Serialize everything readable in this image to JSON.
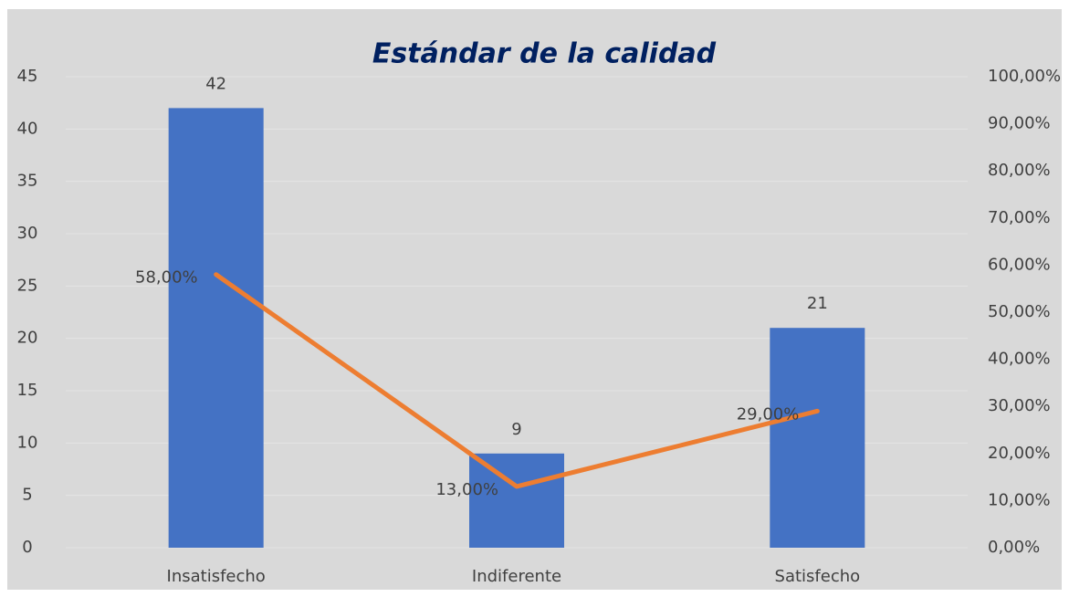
{
  "chart_data": {
    "type": "bar",
    "title": "Estándar de la calidad",
    "categories": [
      "Insatisfecho",
      "Indiferente",
      "Satisfecho"
    ],
    "series": [
      {
        "type": "bar",
        "color": "#4472c4",
        "values": [
          42,
          9,
          21
        ]
      },
      {
        "type": "line",
        "color": "#ed7d31",
        "axis": "y2",
        "values": [
          58,
          13,
          29
        ],
        "value_labels": [
          "58,00%",
          "13,00%",
          "29,00%"
        ]
      }
    ],
    "ylim": [
      0,
      45
    ],
    "yticks": [
      0,
      5,
      10,
      15,
      20,
      25,
      30,
      35,
      40,
      45
    ],
    "y2lim": [
      0,
      100
    ],
    "y2ticks": [
      {
        "value": 0,
        "label": "0,00%"
      },
      {
        "value": 10,
        "label": "10,00%"
      },
      {
        "value": 20,
        "label": "20,00%"
      },
      {
        "value": 30,
        "label": "30,00%"
      },
      {
        "value": 40,
        "label": "40,00%"
      },
      {
        "value": 50,
        "label": "50,00%"
      },
      {
        "value": 60,
        "label": "60,00%"
      },
      {
        "value": 70,
        "label": "70,00%"
      },
      {
        "value": 80,
        "label": "80,00%"
      },
      {
        "value": 90,
        "label": "90,00%"
      },
      {
        "value": 100,
        "label": "100,00%"
      }
    ],
    "grid": true
  }
}
